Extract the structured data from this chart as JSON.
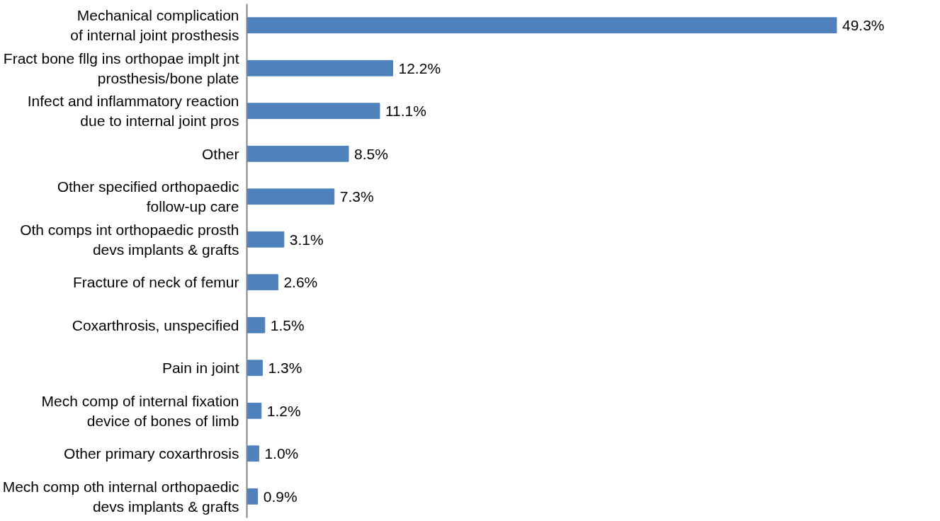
{
  "chart_data": {
    "type": "bar",
    "orientation": "horizontal",
    "color": "#4f81bd",
    "grid": false,
    "categories": [
      "Mechanical complication\nof internal joint prosthesis",
      "Fract bone fllg ins orthopae implt jnt\nprosthesis/bone plate",
      "Infect and inflammatory reaction\ndue to internal joint pros",
      "Other",
      "Other specified orthopaedic\nfollow-up care",
      "Oth comps int orthopaedic prosth\ndevs implants & grafts",
      "Fracture of neck of femur",
      "Coxarthrosis, unspecified",
      "Pain in joint",
      "Mech comp of internal fixation\ndevice of bones of limb",
      "Other primary coxarthrosis",
      "Mech comp oth internal orthopaedic\ndevs implants & grafts"
    ],
    "values": [
      49.3,
      12.2,
      11.1,
      8.5,
      7.3,
      3.1,
      2.6,
      1.5,
      1.3,
      1.2,
      1.0,
      0.9
    ],
    "value_labels": [
      "49.3%",
      "12.2%",
      "11.1%",
      "8.5%",
      "7.3%",
      "3.1%",
      "2.6%",
      "1.5%",
      "1.3%",
      "1.2%",
      "1.0%",
      "0.9%"
    ]
  }
}
